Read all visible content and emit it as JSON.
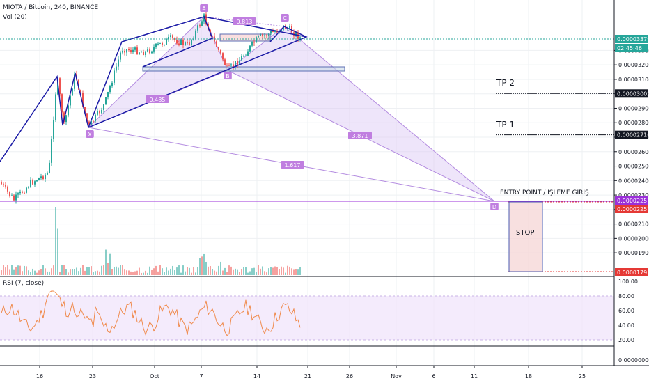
{
  "header": {
    "symbol_line": "MIOTA / Bitcoin, 240, BINANCE",
    "volume_label": "Vol (20)",
    "rsi_label": "RSI (7, close)"
  },
  "colors": {
    "up": "#26a69a",
    "down": "#ef5350",
    "pattern_line": "#1a1aa6",
    "harmonic_fill": "#d9c6f5",
    "harmonic_stroke": "#b38be0",
    "label_bg": "#c07ee0",
    "rsi_line": "#f08a4b",
    "rsi_band": "#efe3fb",
    "entry_line": "#9b30d9",
    "stop_line": "#e53935",
    "current_price_bg": "#26a69a"
  },
  "price_axis": {
    "ticks": [
      "0.00003300",
      "0.00003200",
      "0.00003100",
      "0.00003000",
      "0.00002900",
      "0.00002800",
      "0.00002700",
      "0.00002600",
      "0.00002500",
      "0.00002400",
      "0.00002300",
      "0.00002200",
      "0.00002100",
      "0.00002000",
      "0.00001900"
    ],
    "tick_values": [
      3.3e-05,
      3.2e-05,
      3.1e-05,
      3e-05,
      2.9e-05,
      2.8e-05,
      2.7e-05,
      2.6e-05,
      2.5e-05,
      2.4e-05,
      2.3e-05,
      2.2e-05,
      2.1e-05,
      2e-05,
      1.9e-05
    ],
    "current_price": "0.00003379",
    "countdown": "02:45:46",
    "tp2_price": "0.00003002",
    "tp1_price": "0.00002716",
    "entry_price": "0.00002257",
    "entry_price_2": "0.00002257",
    "stop_price": "0.00001795"
  },
  "rsi_axis": {
    "ticks": [
      "100.00",
      "80.00",
      "60.00",
      "40.00",
      "20.00"
    ],
    "tick_values": [
      100,
      80,
      60,
      40,
      20
    ],
    "bottom_value": "0.00000000"
  },
  "time_axis": {
    "labels": [
      "16",
      "23",
      "Oct",
      "7",
      "14",
      "21",
      "26",
      "Nov",
      "6",
      "11",
      "18",
      "25"
    ]
  },
  "annotations": {
    "tp2": "TP 2",
    "tp1": "TP 1",
    "entry": "ENTRY POINT / İŞLEME GİRİŞ",
    "stop": "STOP",
    "point_A": "A",
    "point_B": "B",
    "point_C": "C",
    "point_D": "D",
    "point_X": "X",
    "ratio_ab": "0.813",
    "ratio_xa": "0.485",
    "ratio_bd": "3.871",
    "ratio_xd": "1.617"
  },
  "chart_data": {
    "type": "candlestick",
    "title": "MIOTA / Bitcoin, 240, BINANCE",
    "pattern": "harmonic XABCD",
    "points": {
      "X": 2.75e-05,
      "A": 3.36e-05,
      "B": 3.14e-05,
      "C": 3.38e-05,
      "D": 2.257e-05
    },
    "ratios": {
      "AB": 0.813,
      "XA_B": 0.485,
      "BD": 3.871,
      "XD": 1.617
    },
    "levels": {
      "TP 2": 3.002e-05,
      "TP 1": 2.716e-05,
      "ENTRY POINT / İŞLEME GİRİŞ": 2.257e-05,
      "STOP": 1.795e-05,
      "current": 3.379e-05
    },
    "rsi_range": [
      20,
      100
    ],
    "rsi_band": [
      20,
      80
    ]
  }
}
